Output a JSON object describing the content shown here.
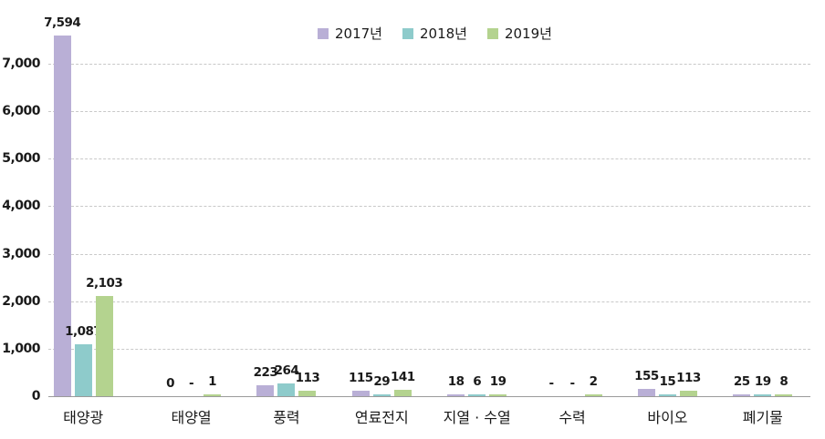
{
  "chart_data": {
    "type": "bar",
    "title": "",
    "xlabel": "",
    "ylabel": "",
    "ylim": [
      0,
      7000
    ],
    "yticks": [
      "0",
      "1,000",
      "2,000",
      "3,000",
      "4,000",
      "5,000",
      "6,000",
      "7,000"
    ],
    "grid": true,
    "legend_position": "top-center",
    "categories": [
      "태양광",
      "태양열",
      "풍력",
      "연료전지",
      "지열 · 수열",
      "수력",
      "바이오",
      "폐기물"
    ],
    "series": [
      {
        "name": "2017년",
        "color": "#b9afd6",
        "values": [
          7594,
          0,
          223,
          115,
          18,
          null,
          155,
          25
        ],
        "labels": [
          "7,594",
          "0",
          "223",
          "115",
          "18",
          "-",
          "155",
          "25"
        ]
      },
      {
        "name": "2018년",
        "color": "#8ecbcb",
        "values": [
          1087,
          null,
          264,
          29,
          6,
          null,
          15,
          19
        ],
        "labels": [
          "1,087",
          "-",
          "264",
          "29",
          "6",
          "-",
          "15",
          "19"
        ]
      },
      {
        "name": "2019년",
        "color": "#b4d38f",
        "values": [
          2103,
          1,
          113,
          141,
          19,
          2,
          113,
          8
        ],
        "labels": [
          "2,103",
          "1",
          "113",
          "141",
          "19",
          "2",
          "113",
          "8"
        ]
      }
    ]
  },
  "legend": [
    "2017년",
    "2018년",
    "2019년"
  ]
}
